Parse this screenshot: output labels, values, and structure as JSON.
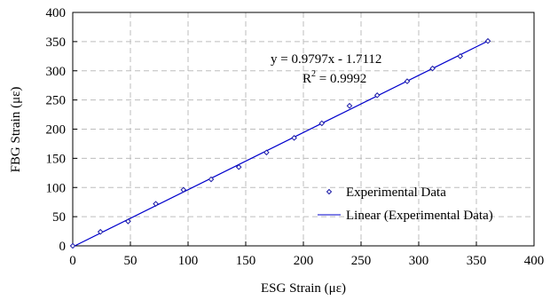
{
  "chart_data": {
    "type": "scatter",
    "title": "",
    "xlabel": "ESG Strain (με)",
    "ylabel": "FBG Strain (με)",
    "xlim": [
      0,
      400
    ],
    "ylim": [
      0,
      400
    ],
    "xticks": [
      "0",
      "50",
      "100",
      "150",
      "200",
      "250",
      "300",
      "350",
      "400"
    ],
    "yticks": [
      "0",
      "50",
      "100",
      "150",
      "200",
      "250",
      "300",
      "350",
      "400"
    ],
    "grid": true,
    "legend_position": "bottom-right",
    "series": [
      {
        "name": "Experimental Data",
        "marker": "diamond",
        "color": "#1a1aa6",
        "points": [
          [
            0,
            0
          ],
          [
            24,
            24
          ],
          [
            48,
            42
          ],
          [
            72,
            72
          ],
          [
            96,
            96
          ],
          [
            120,
            114
          ],
          [
            144,
            135
          ],
          [
            168,
            160
          ],
          [
            192,
            185
          ],
          [
            216,
            210
          ],
          [
            240,
            240
          ],
          [
            264,
            258
          ],
          [
            290,
            282
          ],
          [
            312,
            304
          ],
          [
            336,
            325
          ],
          [
            360,
            351
          ]
        ]
      },
      {
        "name": "Linear (Experimental Data)",
        "type": "line",
        "color": "#0000cc",
        "points": [
          [
            0,
            -1.7112
          ],
          [
            360,
            350.9808
          ]
        ]
      }
    ],
    "annotations": {
      "equation": "y = 0.9797x - 1.7112",
      "r2_prefix": "R",
      "r2_sup": "2",
      "r2_value": " = 0.9992"
    }
  }
}
